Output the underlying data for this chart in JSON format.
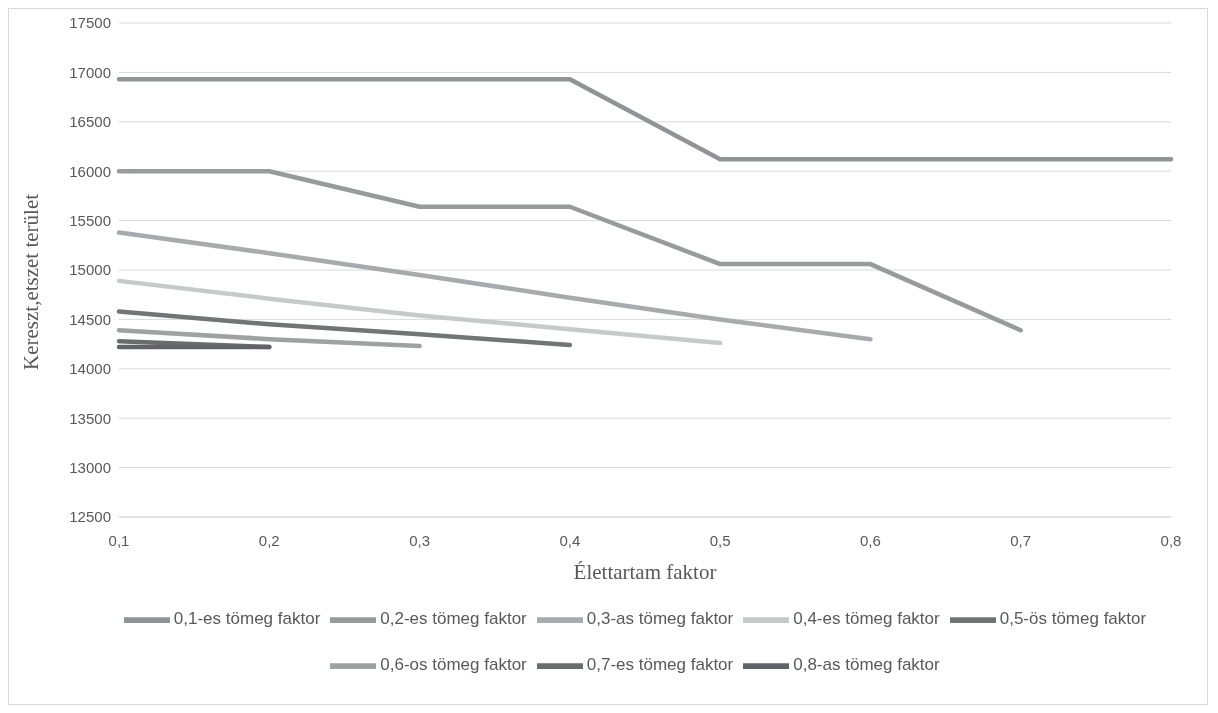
{
  "chart_data": {
    "type": "line",
    "xlabel": "Élettartam faktor",
    "ylabel": "Kereszt,etszet terület",
    "categories": [
      "0,1",
      "0,2",
      "0,3",
      "0,4",
      "0,5",
      "0,6",
      "0,7",
      "0,8"
    ],
    "series": [
      {
        "name": "0,1-es tömeg faktor",
        "color": "#929396",
        "values": [
          16930,
          16930,
          16930,
          16930,
          16120,
          16120,
          16120,
          16120
        ]
      },
      {
        "name": "0,2-es tömeg faktor",
        "color": "#999a9c",
        "values": [
          16000,
          16000,
          15640,
          15640,
          15060,
          15060,
          14390,
          null
        ]
      },
      {
        "name": "0,3-as tömeg faktor",
        "color": "#a9aaad",
        "values": [
          15380,
          15170,
          14950,
          14720,
          14500,
          14300,
          null,
          null
        ]
      },
      {
        "name": "0,4-es tömeg faktor",
        "color": "#c8c9ca",
        "values": [
          14890,
          14710,
          14540,
          14400,
          14260,
          null,
          null,
          null
        ]
      },
      {
        "name": "0,5-ös tömeg faktor",
        "color": "#737476",
        "values": [
          14580,
          14450,
          14350,
          14240,
          null,
          null,
          null,
          null
        ]
      },
      {
        "name": "0,6-os tömeg faktor",
        "color": "#a0a1a3",
        "values": [
          14390,
          14300,
          14230,
          null,
          null,
          null,
          null,
          null
        ]
      },
      {
        "name": "0,7-es tömeg faktor",
        "color": "#6b6c6e",
        "values": [
          14280,
          14220,
          null,
          null,
          null,
          null,
          null,
          null
        ]
      },
      {
        "name": "0,8-as tömeg faktor",
        "color": "#626366",
        "values": [
          14220,
          14220,
          null,
          null,
          null,
          null,
          null,
          null
        ]
      }
    ],
    "ylim": [
      12500,
      17500
    ],
    "yticks": [
      12500,
      13000,
      13500,
      14000,
      14500,
      15000,
      15500,
      16000,
      16500,
      17000,
      17500
    ],
    "grid": "y",
    "legend": "bottom",
    "marker": "none",
    "line_style": "solid"
  }
}
